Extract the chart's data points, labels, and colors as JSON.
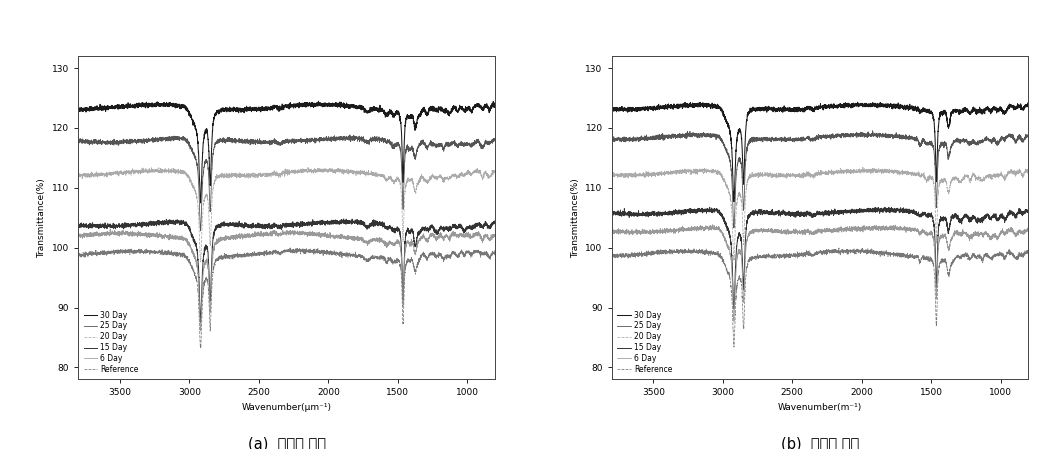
{
  "title_a": "(a)  지지층 소재",
  "title_b": "(b)  표면층 소재",
  "xlabel_a": "Wavenumber(μm⁻¹)",
  "xlabel_b": "Wavenumber(m⁻¹)",
  "ylabel": "Transmittance(%)",
  "xlim": [
    3800,
    800
  ],
  "ylim": [
    78,
    132
  ],
  "yticks": [
    80,
    90,
    100,
    110,
    120,
    130
  ],
  "xticks": [
    3500,
    3000,
    2500,
    2000,
    1500,
    1000
  ],
  "legend_labels": [
    "30 Day",
    "25 Day",
    "20 Day",
    "15 Day",
    "6 Day",
    "Reference"
  ],
  "offsets_a": [
    24.5,
    19.0,
    13.5,
    5.0,
    3.0,
    0.0
  ],
  "offsets_b": [
    24.5,
    19.5,
    13.5,
    7.0,
    4.0,
    0.0
  ],
  "base_level": 99.0,
  "bg_color": "#f5f5f5"
}
